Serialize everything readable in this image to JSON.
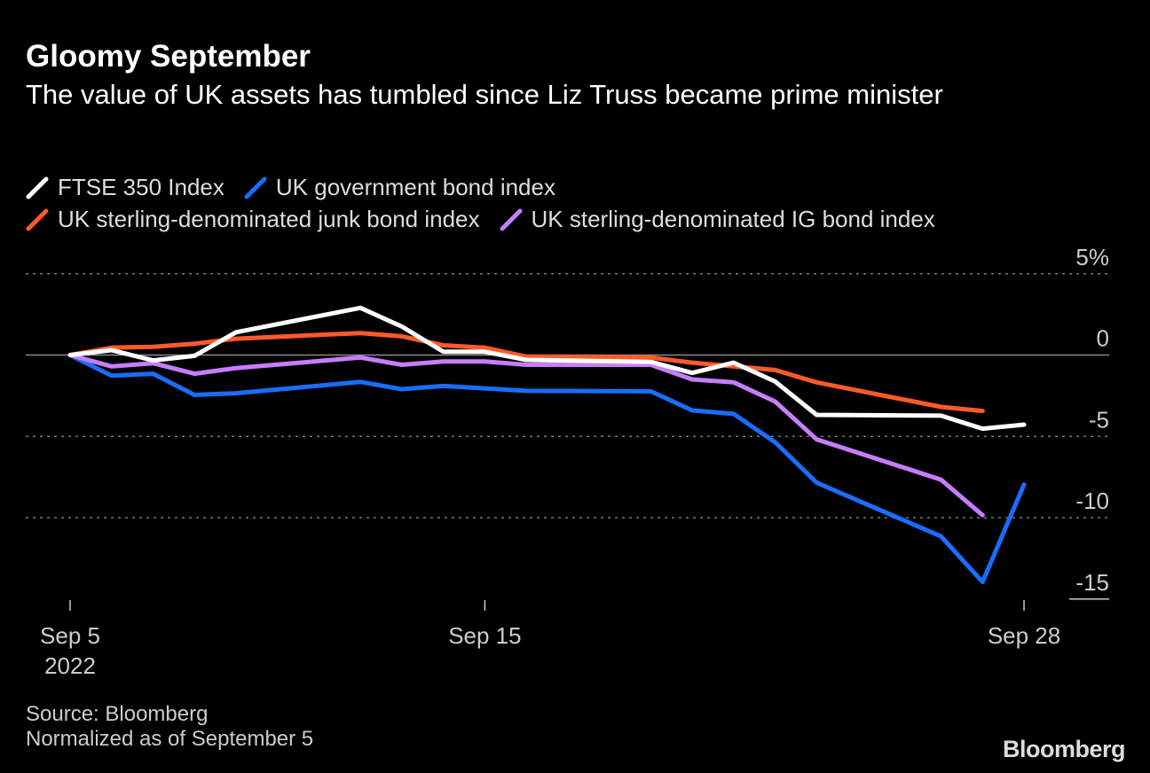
{
  "header": {
    "title": "Gloomy September",
    "subtitle": "The value of UK assets has tumbled since Liz Truss became prime minister"
  },
  "footer": {
    "source": "Source: Bloomberg",
    "note": "Normalized as of September 5",
    "logo": "Bloomberg"
  },
  "chart_data": {
    "type": "line",
    "title": "Gloomy September",
    "subtitle": "The value of UK assets has tumbled since Liz Truss became prime minister",
    "x": [
      "2022-09-05",
      "2022-09-06",
      "2022-09-07",
      "2022-09-08",
      "2022-09-09",
      "2022-09-12",
      "2022-09-13",
      "2022-09-14",
      "2022-09-15",
      "2022-09-16",
      "2022-09-19",
      "2022-09-20",
      "2022-09-21",
      "2022-09-22",
      "2022-09-23",
      "2022-09-26",
      "2022-09-27",
      "2022-09-28"
    ],
    "x_ticks": [
      {
        "date": "2022-09-05",
        "label": "Sep 5",
        "sublabel": "2022"
      },
      {
        "date": "2022-09-15",
        "label": "Sep 15"
      },
      {
        "date": "2022-09-28",
        "label": "Sep 28"
      }
    ],
    "y_ticks": [
      {
        "value": 5,
        "label": "5%"
      },
      {
        "value": 0,
        "label": "0"
      },
      {
        "value": -5,
        "label": "-5"
      },
      {
        "value": -10,
        "label": "-10"
      },
      {
        "value": -15,
        "label": "-15"
      }
    ],
    "ylim": [
      -15,
      5
    ],
    "grid": true,
    "legend_position": "top-left",
    "series": [
      {
        "name": "FTSE 350 Index",
        "color": "#ffffff",
        "values": [
          0,
          0.3,
          -0.33,
          -0.05,
          1.4,
          2.9,
          1.75,
          0.2,
          0.2,
          -0.3,
          -0.42,
          -1.1,
          -0.47,
          -1.63,
          -3.68,
          -3.73,
          -4.53,
          -4.28
        ]
      },
      {
        "name": "UK government bond index",
        "color": "#1a6dff",
        "values": [
          0,
          -1.27,
          -1.15,
          -2.45,
          -2.35,
          -1.65,
          -2.1,
          -1.9,
          -2.05,
          -2.2,
          -2.23,
          -3.4,
          -3.62,
          -5.36,
          -7.84,
          -11.15,
          -13.95,
          -7.97
        ]
      },
      {
        "name": "UK sterling-denominated junk bond index",
        "color": "#ff5a2a",
        "values": [
          0,
          0.45,
          0.5,
          0.7,
          1.0,
          1.35,
          1.15,
          0.6,
          0.45,
          -0.1,
          -0.15,
          -0.47,
          -0.69,
          -0.92,
          -1.68,
          -3.19,
          -3.44,
          null
        ]
      },
      {
        "name": "UK sterling-denominated IG bond index",
        "color": "#c77dff",
        "values": [
          0,
          -0.7,
          -0.5,
          -1.15,
          -0.8,
          -0.15,
          -0.6,
          -0.4,
          -0.4,
          -0.6,
          -0.6,
          -1.5,
          -1.68,
          -2.86,
          -5.18,
          -7.66,
          -9.84,
          null
        ]
      }
    ]
  }
}
